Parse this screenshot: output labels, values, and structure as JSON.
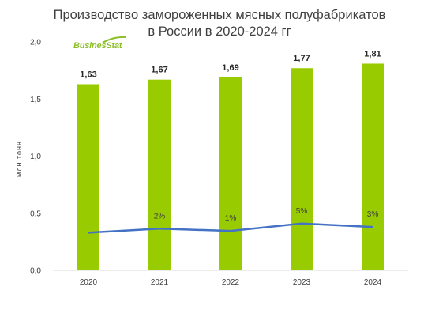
{
  "chart_data": {
    "type": "bar",
    "title_line1": "Производство замороженных мясных полуфабрикатов",
    "title_line2": "в России в 2020-2024 гг",
    "ylabel": "млн тонн",
    "brand": "BusinesStat",
    "categories": [
      "2020",
      "2021",
      "2022",
      "2023",
      "2024"
    ],
    "values": [
      1.63,
      1.67,
      1.69,
      1.77,
      1.81
    ],
    "value_labels": [
      "1,63",
      "1,67",
      "1,69",
      "1,77",
      "1,81"
    ],
    "ylim": [
      0,
      2.0
    ],
    "yticks": [
      0,
      0.5,
      1.0,
      1.5,
      2.0
    ],
    "ytick_labels": [
      "0,0",
      "0,5",
      "1,0",
      "1,5",
      "2,0"
    ],
    "growth_line": {
      "values": [
        0.33,
        0.365,
        0.345,
        0.41,
        0.38
      ],
      "labels": [
        "",
        "2%",
        "1%",
        "5%",
        "3%"
      ],
      "color": "#4472c4"
    },
    "bar_color": "#99cc00",
    "grid": false
  }
}
